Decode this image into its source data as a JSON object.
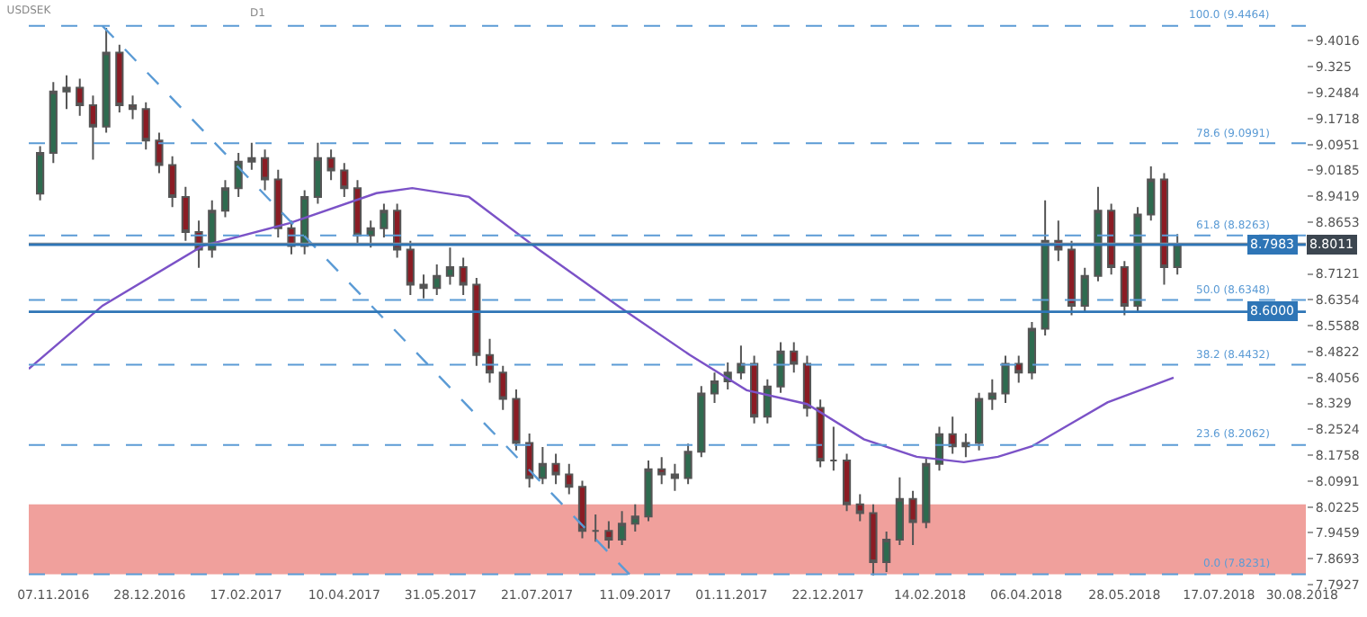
{
  "chart_data": {
    "type": "candlestick",
    "title": "USDSEK",
    "annotations": [
      "D1"
    ],
    "x": [
      "2016-10-31",
      "2016-11-07",
      "2016-11-14",
      "2016-11-21",
      "2016-11-28",
      "2016-12-05",
      "2016-12-12",
      "2016-12-19",
      "2016-12-26",
      "2017-01-02",
      "2017-01-09",
      "2017-01-16",
      "2017-01-23",
      "2017-01-30",
      "2017-02-06",
      "2017-02-13",
      "2017-02-20",
      "2017-02-27",
      "2017-03-06",
      "2017-03-13",
      "2017-03-20",
      "2017-03-27",
      "2017-04-03",
      "2017-04-10",
      "2017-04-17",
      "2017-04-24",
      "2017-05-01",
      "2017-05-08",
      "2017-05-15",
      "2017-05-22",
      "2017-05-29",
      "2017-06-05",
      "2017-06-12",
      "2017-06-19",
      "2017-06-26",
      "2017-07-03",
      "2017-07-10",
      "2017-07-17",
      "2017-07-24",
      "2017-07-31",
      "2017-08-07",
      "2017-08-14",
      "2017-08-21",
      "2017-08-28",
      "2017-09-04",
      "2017-09-11",
      "2017-09-18",
      "2017-09-25",
      "2017-10-02",
      "2017-10-09",
      "2017-10-16",
      "2017-10-23",
      "2017-10-30",
      "2017-11-06",
      "2017-11-13",
      "2017-11-20",
      "2017-11-27",
      "2017-12-04",
      "2017-12-11",
      "2017-12-18",
      "2017-12-25",
      "2018-01-01",
      "2018-01-08",
      "2018-01-15",
      "2018-01-22",
      "2018-01-29",
      "2018-02-05",
      "2018-02-12",
      "2018-02-19",
      "2018-02-26",
      "2018-03-05",
      "2018-03-12",
      "2018-03-19",
      "2018-03-26",
      "2018-04-02",
      "2018-04-09",
      "2018-04-16",
      "2018-04-23",
      "2018-04-30",
      "2018-05-07",
      "2018-05-14",
      "2018-05-21",
      "2018-05-28",
      "2018-06-04",
      "2018-06-11",
      "2018-06-18",
      "2018-06-25"
    ],
    "ohlc": [
      [
        8.95,
        9.09,
        8.93,
        9.07
      ],
      [
        9.07,
        9.28,
        9.04,
        9.252
      ],
      [
        9.252,
        9.3,
        9.2,
        9.263
      ],
      [
        9.263,
        9.29,
        9.18,
        9.211
      ],
      [
        9.211,
        9.24,
        9.05,
        9.148
      ],
      [
        9.148,
        9.44,
        9.13,
        9.367
      ],
      [
        9.367,
        9.39,
        9.19,
        9.211
      ],
      [
        9.211,
        9.24,
        9.17,
        9.2
      ],
      [
        9.2,
        9.22,
        9.08,
        9.107
      ],
      [
        9.107,
        9.13,
        9.01,
        9.034
      ],
      [
        9.034,
        9.06,
        8.91,
        8.94
      ],
      [
        8.94,
        8.97,
        8.81,
        8.836
      ],
      [
        8.836,
        8.87,
        8.73,
        8.784
      ],
      [
        8.784,
        8.93,
        8.76,
        8.899
      ],
      [
        8.899,
        8.99,
        8.88,
        8.966
      ],
      [
        8.966,
        9.07,
        8.94,
        9.044
      ],
      [
        9.044,
        9.1,
        9.02,
        9.055
      ],
      [
        9.055,
        9.08,
        8.96,
        8.992
      ],
      [
        8.992,
        9.02,
        8.82,
        8.847
      ],
      [
        8.847,
        8.87,
        8.77,
        8.795
      ],
      [
        8.795,
        8.96,
        8.77,
        8.94
      ],
      [
        8.94,
        9.1,
        8.92,
        9.055
      ],
      [
        9.055,
        9.08,
        8.99,
        9.018
      ],
      [
        9.018,
        9.04,
        8.94,
        8.966
      ],
      [
        8.966,
        8.99,
        8.8,
        8.826
      ],
      [
        8.826,
        8.87,
        8.79,
        8.847
      ],
      [
        8.847,
        8.92,
        8.82,
        8.899
      ],
      [
        8.899,
        8.92,
        8.76,
        8.784
      ],
      [
        8.784,
        8.81,
        8.65,
        8.68
      ],
      [
        8.68,
        8.71,
        8.64,
        8.67
      ],
      [
        8.67,
        8.74,
        8.65,
        8.706
      ],
      [
        8.706,
        8.79,
        8.68,
        8.732
      ],
      [
        8.732,
        8.76,
        8.65,
        8.68
      ],
      [
        8.68,
        8.7,
        8.44,
        8.472
      ],
      [
        8.472,
        8.52,
        8.39,
        8.42
      ],
      [
        8.42,
        8.44,
        8.31,
        8.342
      ],
      [
        8.342,
        8.37,
        8.19,
        8.212
      ],
      [
        8.212,
        8.24,
        8.08,
        8.108
      ],
      [
        8.108,
        8.2,
        8.09,
        8.15
      ],
      [
        8.15,
        8.18,
        8.09,
        8.119
      ],
      [
        8.119,
        8.15,
        8.06,
        8.082
      ],
      [
        8.082,
        8.1,
        7.93,
        7.952
      ],
      [
        7.952,
        8.0,
        7.92,
        7.952
      ],
      [
        7.952,
        7.98,
        7.9,
        7.926
      ],
      [
        7.926,
        8.01,
        7.91,
        7.973
      ],
      [
        7.973,
        8.03,
        7.95,
        7.994
      ],
      [
        7.994,
        8.16,
        7.98,
        8.134
      ],
      [
        8.134,
        8.17,
        8.09,
        8.119
      ],
      [
        8.119,
        8.15,
        8.07,
        8.108
      ],
      [
        8.108,
        8.21,
        8.09,
        8.186
      ],
      [
        8.186,
        8.38,
        8.17,
        8.358
      ],
      [
        8.358,
        8.42,
        8.33,
        8.394
      ],
      [
        8.394,
        8.45,
        8.37,
        8.42
      ],
      [
        8.42,
        8.5,
        8.4,
        8.446
      ],
      [
        8.446,
        8.47,
        8.27,
        8.29
      ],
      [
        8.29,
        8.4,
        8.27,
        8.379
      ],
      [
        8.379,
        8.51,
        8.36,
        8.483
      ],
      [
        8.483,
        8.51,
        8.42,
        8.446
      ],
      [
        8.446,
        8.47,
        8.29,
        8.316
      ],
      [
        8.316,
        8.34,
        8.14,
        8.16
      ],
      [
        8.16,
        8.26,
        8.13,
        8.16
      ],
      [
        8.16,
        8.18,
        8.01,
        8.03
      ],
      [
        8.03,
        8.06,
        7.98,
        8.004
      ],
      [
        8.004,
        8.03,
        7.82,
        7.859
      ],
      [
        7.859,
        7.95,
        7.83,
        7.926
      ],
      [
        7.926,
        8.11,
        7.91,
        8.046
      ],
      [
        8.046,
        8.07,
        7.91,
        7.978
      ],
      [
        7.978,
        8.17,
        7.96,
        8.15
      ],
      [
        8.15,
        8.26,
        8.13,
        8.238
      ],
      [
        8.238,
        8.29,
        8.18,
        8.202
      ],
      [
        8.202,
        8.24,
        8.17,
        8.212
      ],
      [
        8.212,
        8.36,
        8.19,
        8.342
      ],
      [
        8.342,
        8.4,
        8.31,
        8.358
      ],
      [
        8.358,
        8.47,
        8.33,
        8.446
      ],
      [
        8.446,
        8.47,
        8.39,
        8.42
      ],
      [
        8.42,
        8.57,
        8.4,
        8.55
      ],
      [
        8.55,
        8.93,
        8.53,
        8.81
      ],
      [
        8.81,
        8.87,
        8.75,
        8.784
      ],
      [
        8.784,
        8.81,
        8.59,
        8.618
      ],
      [
        8.618,
        8.73,
        8.6,
        8.706
      ],
      [
        8.706,
        8.97,
        8.69,
        8.899
      ],
      [
        8.899,
        8.92,
        8.71,
        8.732
      ],
      [
        8.732,
        8.75,
        8.59,
        8.618
      ],
      [
        8.618,
        8.91,
        8.6,
        8.888
      ],
      [
        8.888,
        9.03,
        8.87,
        8.992
      ],
      [
        8.992,
        9.01,
        8.68,
        8.732
      ],
      [
        8.732,
        8.83,
        8.71,
        8.801
      ]
    ],
    "series": [
      {
        "type": "line",
        "color": "#7b52c7",
        "x": [
          "2016-10-25",
          "2016-12-03",
          "2017-01-25",
          "2017-03-12",
          "2017-04-27",
          "2017-05-16",
          "2017-06-15",
          "2017-07-22",
          "2017-09-03",
          "2017-10-10",
          "2017-11-09",
          "2017-12-11",
          "2018-01-10",
          "2018-02-07",
          "2018-03-04",
          "2018-03-22",
          "2018-04-09",
          "2018-04-28",
          "2018-05-19",
          "2018-06-23"
        ],
        "values": [
          8.431,
          8.618,
          8.795,
          8.862,
          8.951,
          8.966,
          8.94,
          8.784,
          8.613,
          8.472,
          8.368,
          8.327,
          8.223,
          8.171,
          8.155,
          8.171,
          8.202,
          8.264,
          8.332,
          8.405
        ]
      },
      {
        "type": "line",
        "color": "#5b9bd5",
        "line_style": "dashed",
        "x": [
          "2016-12-03",
          "2017-09-08"
        ],
        "values": [
          9.446,
          7.823
        ]
      }
    ],
    "xlim": [
      "2016-10-25",
      "2018-09-01"
    ],
    "xticks": [
      {
        "value": "2016-11-07",
        "label": "07.11.2016"
      },
      {
        "value": "2016-12-28",
        "label": "28.12.2016"
      },
      {
        "value": "2017-02-17",
        "label": "17.02.2017"
      },
      {
        "value": "2017-04-10",
        "label": "10.04.2017"
      },
      {
        "value": "2017-05-31",
        "label": "31.05.2017"
      },
      {
        "value": "2017-07-21",
        "label": "21.07.2017"
      },
      {
        "value": "2017-09-11",
        "label": "11.09.2017"
      },
      {
        "value": "2017-11-01",
        "label": "01.11.2017"
      },
      {
        "value": "2017-12-22",
        "label": "22.12.2017"
      },
      {
        "value": "2018-02-14",
        "label": "14.02.2018"
      },
      {
        "value": "2018-04-06",
        "label": "06.04.2018"
      },
      {
        "value": "2018-05-28",
        "label": "28.05.2018"
      },
      {
        "value": "2018-07-17",
        "label": "17.07.2018"
      },
      {
        "value": "2018-08-30",
        "label": "30.08.2018"
      }
    ],
    "ylim": [
      7.7927,
      9.512
    ],
    "yticks": [
      9.4016,
      9.325,
      9.2484,
      9.1718,
      9.0951,
      9.0185,
      8.9419,
      8.8653,
      8.7121,
      8.6354,
      8.5588,
      8.4822,
      8.4056,
      8.329,
      8.2524,
      8.1758,
      8.0991,
      8.0225,
      7.9459,
      7.8693,
      7.7927
    ],
    "ref_lines": [
      {
        "axis": "y",
        "value": 9.4464,
        "label": "100.0 (9.4464)",
        "color": "#5b9bd5",
        "line_style": "dashed"
      },
      {
        "axis": "y",
        "value": 9.0991,
        "label": "78.6 (9.0991)",
        "color": "#5b9bd5",
        "line_style": "dashed"
      },
      {
        "axis": "y",
        "value": 8.8263,
        "label": "61.8 (8.8263)",
        "color": "#5b9bd5",
        "line_style": "dashed"
      },
      {
        "axis": "y",
        "value": 8.6348,
        "label": "50.0 (8.6348)",
        "color": "#5b9bd5",
        "line_style": "dashed"
      },
      {
        "axis": "y",
        "value": 8.4432,
        "label": "38.2 (8.4432)",
        "color": "#5b9bd5",
        "line_style": "dashed"
      },
      {
        "axis": "y",
        "value": 8.2062,
        "label": "23.6 (8.2062)",
        "color": "#5b9bd5",
        "line_style": "dashed"
      },
      {
        "axis": "y",
        "value": 7.8231,
        "label": "0.0 (7.8231)",
        "color": "#5b9bd5",
        "line_style": "dashed"
      },
      {
        "axis": "y",
        "value": 8.8011,
        "label": "8.8011",
        "color": "#8a9096",
        "line_style": "solid"
      },
      {
        "axis": "y",
        "value": 8.7983,
        "label": "8.7983",
        "color": "#2e75b6",
        "line_style": "solid"
      },
      {
        "axis": "y",
        "value": 8.6,
        "label": "8.6000",
        "color": "#2e75b6",
        "line_style": "solid"
      }
    ],
    "bands": [
      {
        "axis": "y",
        "from": 7.8231,
        "to": 8.03,
        "color": "#f0a09c"
      }
    ],
    "grid": false
  }
}
